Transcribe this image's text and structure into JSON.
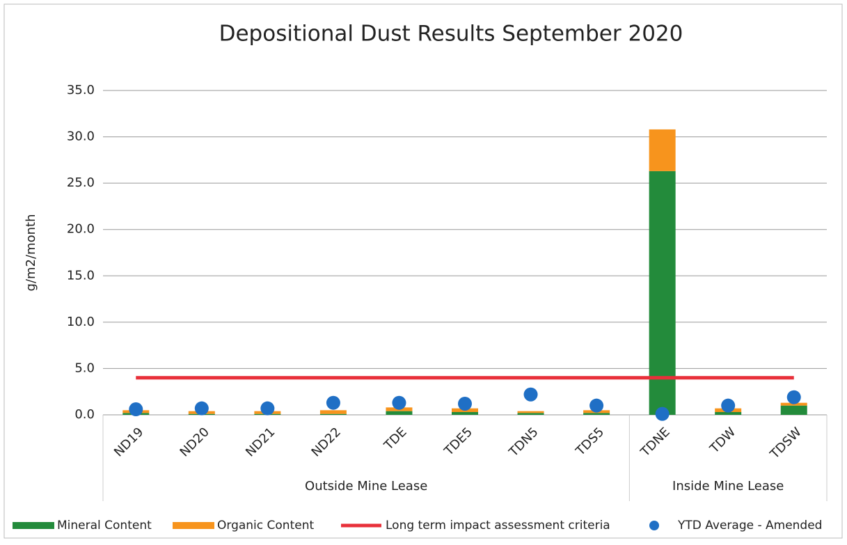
{
  "chart_data": {
    "type": "bar",
    "stacked": true,
    "title": "Depositional Dust Results September 2020",
    "y_label": "g/m2/month",
    "categories": [
      "ND19",
      "ND20",
      "ND21",
      "ND22",
      "TDE",
      "TDE5",
      "TDN5",
      "TDS5",
      "TDNE",
      "TDW",
      "TDSW"
    ],
    "groups": [
      {
        "name": "Outside Mine Lease",
        "start": 0,
        "end": 7
      },
      {
        "name": "Inside Mine Lease",
        "start": 8,
        "end": 10
      }
    ],
    "series": [
      {
        "name": "Mineral Content",
        "type": "bar",
        "color": "#238b3b",
        "values": [
          0.2,
          0.1,
          0.1,
          0.1,
          0.4,
          0.3,
          0.2,
          0.2,
          26.3,
          0.3,
          1.0
        ]
      },
      {
        "name": "Organic Content",
        "type": "bar",
        "color": "#f7941d",
        "values": [
          0.3,
          0.3,
          0.3,
          0.4,
          0.4,
          0.4,
          0.2,
          0.3,
          4.5,
          0.4,
          0.3
        ]
      },
      {
        "name": "Long term impact assessment criteria",
        "type": "line",
        "color": "#e8303a",
        "values": [
          4.0,
          4.0,
          4.0,
          4.0,
          4.0,
          4.0,
          4.0,
          4.0,
          4.0,
          4.0,
          4.0
        ]
      },
      {
        "name": "YTD Average - Amended",
        "type": "scatter",
        "color": "#1f6fc5",
        "values": [
          0.6,
          0.7,
          0.7,
          1.3,
          1.3,
          1.2,
          2.2,
          1.0,
          0.1,
          1.0,
          1.9
        ]
      }
    ],
    "ylim": [
      0,
      35
    ],
    "yticks": [
      {
        "value": 0,
        "label": "0.0"
      },
      {
        "value": 5,
        "label": "5.0"
      },
      {
        "value": 10,
        "label": "10.0"
      },
      {
        "value": 15,
        "label": "15.0"
      },
      {
        "value": 20,
        "label": "20.0"
      },
      {
        "value": 25,
        "label": "25.0"
      },
      {
        "value": 30,
        "label": "30.0"
      },
      {
        "value": 35,
        "label": "35.0"
      }
    ],
    "grid": true,
    "legend": "bottom"
  }
}
